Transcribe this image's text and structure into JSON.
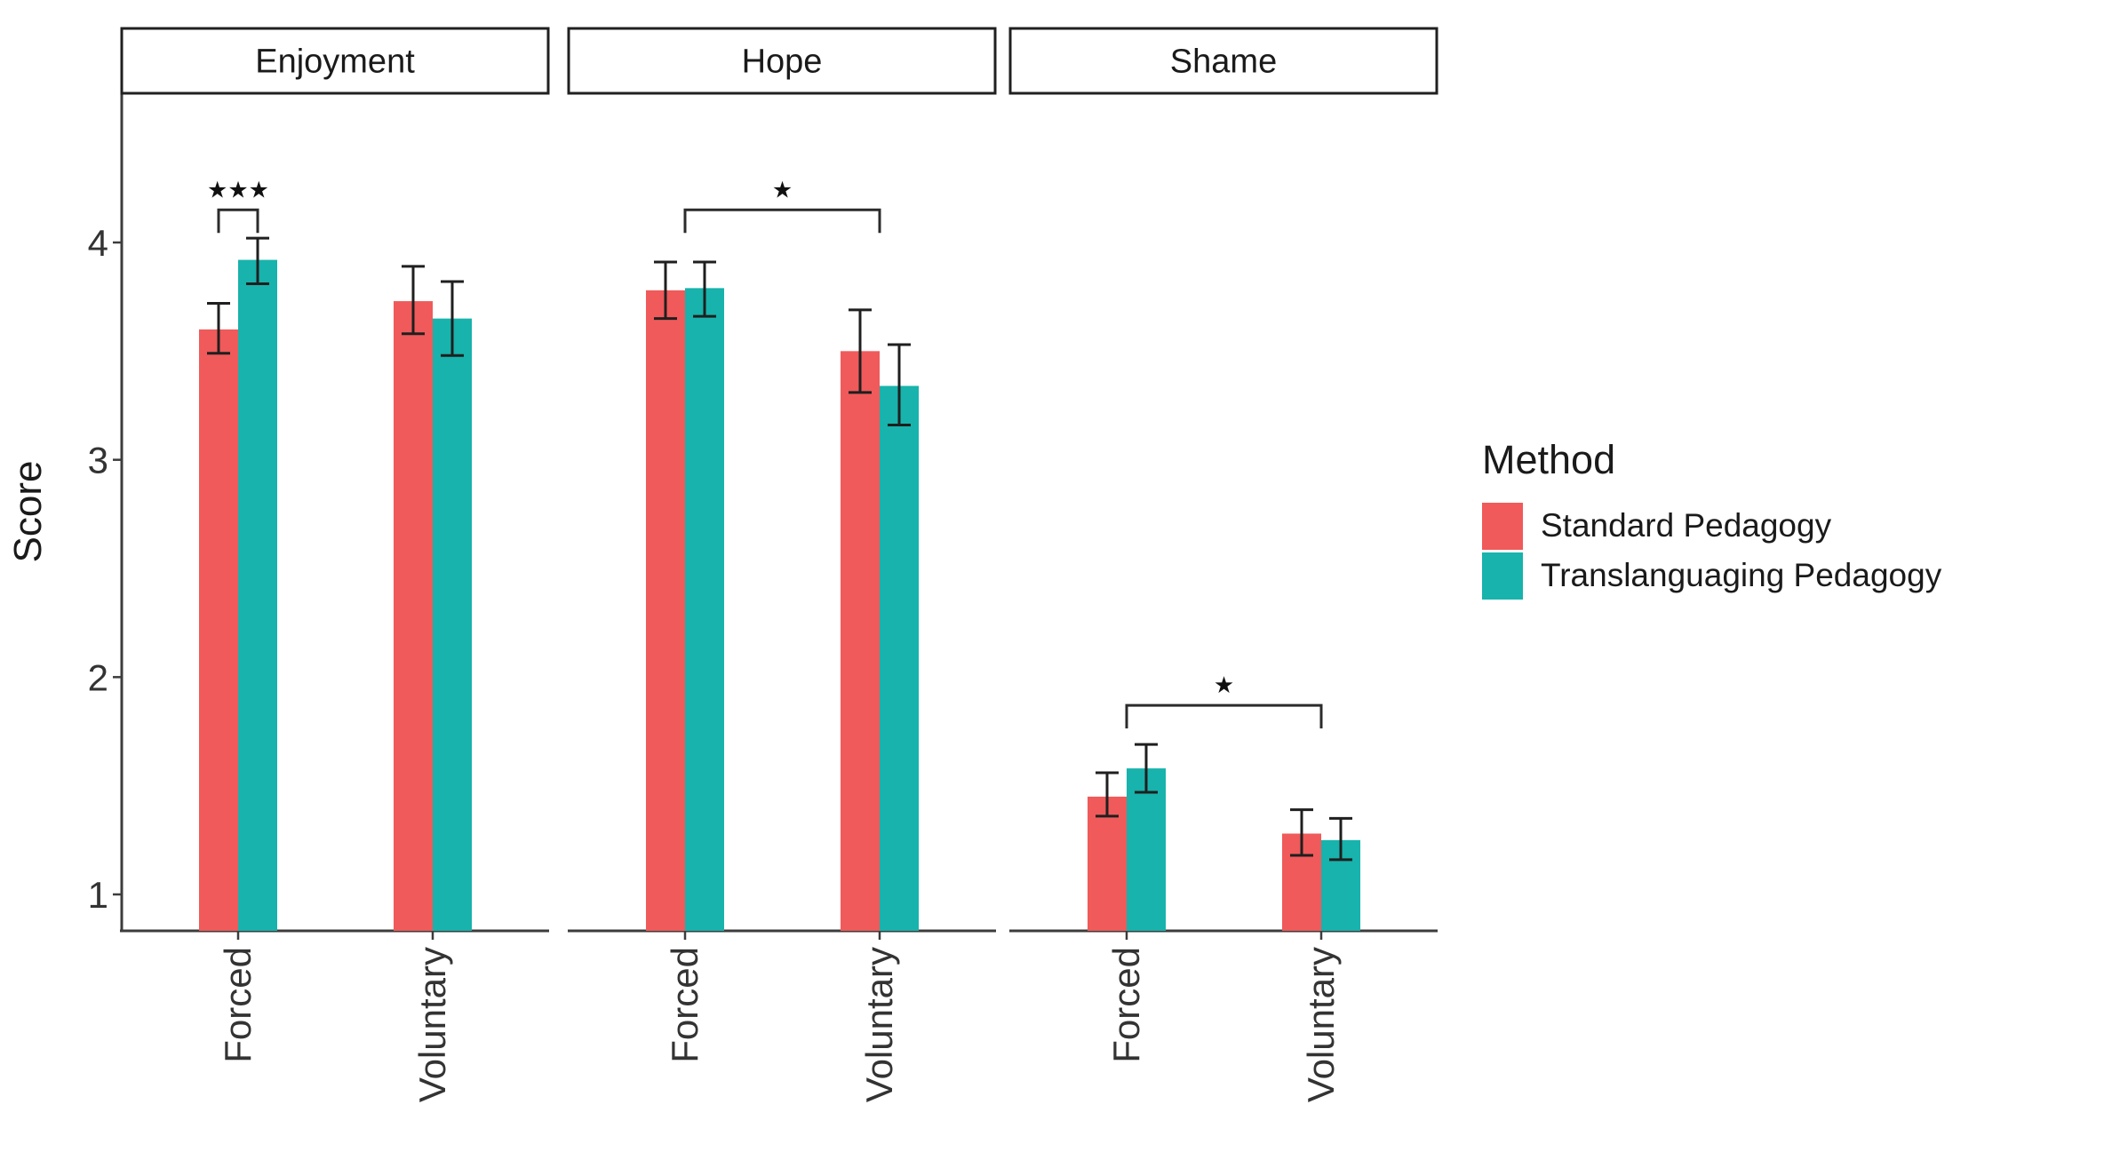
{
  "chart_data": {
    "type": "bar",
    "title": "",
    "y_axis": {
      "label": "Score",
      "ticks": [
        1,
        2,
        3,
        4
      ],
      "range_visible": [
        0.83,
        4.18
      ]
    },
    "categories": [
      "Forced",
      "Voluntary"
    ],
    "series": [
      {
        "name": "Standard Pedagogy",
        "color": "#F05A5A"
      },
      {
        "name": "Translanguaging Pedagogy",
        "color": "#17B3AC"
      }
    ],
    "legend": {
      "title": "Method",
      "position": "right"
    },
    "facets": [
      {
        "label": "Enjoyment",
        "groups": [
          {
            "category": "Forced",
            "bars": [
              {
                "series": "Standard Pedagogy",
                "mean": 3.6,
                "ci": [
                  3.49,
                  3.72
                ]
              },
              {
                "series": "Translanguaging Pedagogy",
                "mean": 3.92,
                "ci": [
                  3.81,
                  4.02
                ]
              }
            ]
          },
          {
            "category": "Voluntary",
            "bars": [
              {
                "series": "Standard Pedagogy",
                "mean": 3.73,
                "ci": [
                  3.58,
                  3.89
                ]
              },
              {
                "series": "Translanguaging Pedagogy",
                "mean": 3.65,
                "ci": [
                  3.48,
                  3.82
                ]
              }
            ]
          }
        ],
        "significance": {
          "label": "★★★",
          "from": {
            "group": 0,
            "bar": 0
          },
          "to": {
            "group": 0,
            "bar": 1
          },
          "bracket_y": 4.15
        }
      },
      {
        "label": "Hope",
        "groups": [
          {
            "category": "Forced",
            "bars": [
              {
                "series": "Standard Pedagogy",
                "mean": 3.78,
                "ci": [
                  3.65,
                  3.91
                ]
              },
              {
                "series": "Translanguaging Pedagogy",
                "mean": 3.79,
                "ci": [
                  3.66,
                  3.91
                ]
              }
            ]
          },
          {
            "category": "Voluntary",
            "bars": [
              {
                "series": "Standard Pedagogy",
                "mean": 3.5,
                "ci": [
                  3.31,
                  3.69
                ]
              },
              {
                "series": "Translanguaging Pedagogy",
                "mean": 3.34,
                "ci": [
                  3.16,
                  3.53
                ]
              }
            ]
          }
        ],
        "significance": {
          "label": "★",
          "from": {
            "group": 0
          },
          "to": {
            "group": 1
          },
          "bracket_y": 4.15
        }
      },
      {
        "label": "Shame",
        "groups": [
          {
            "category": "Forced",
            "bars": [
              {
                "series": "Standard Pedagogy",
                "mean": 1.45,
                "ci": [
                  1.36,
                  1.56
                ]
              },
              {
                "series": "Translanguaging Pedagogy",
                "mean": 1.58,
                "ci": [
                  1.47,
                  1.69
                ]
              }
            ]
          },
          {
            "category": "Voluntary",
            "bars": [
              {
                "series": "Standard Pedagogy",
                "mean": 1.28,
                "ci": [
                  1.18,
                  1.39
                ]
              },
              {
                "series": "Translanguaging Pedagogy",
                "mean": 1.25,
                "ci": [
                  1.16,
                  1.35
                ]
              }
            ]
          }
        ],
        "significance": {
          "label": "★",
          "from": {
            "group": 0
          },
          "to": {
            "group": 1
          },
          "bracket_y": 1.87
        }
      }
    ]
  }
}
